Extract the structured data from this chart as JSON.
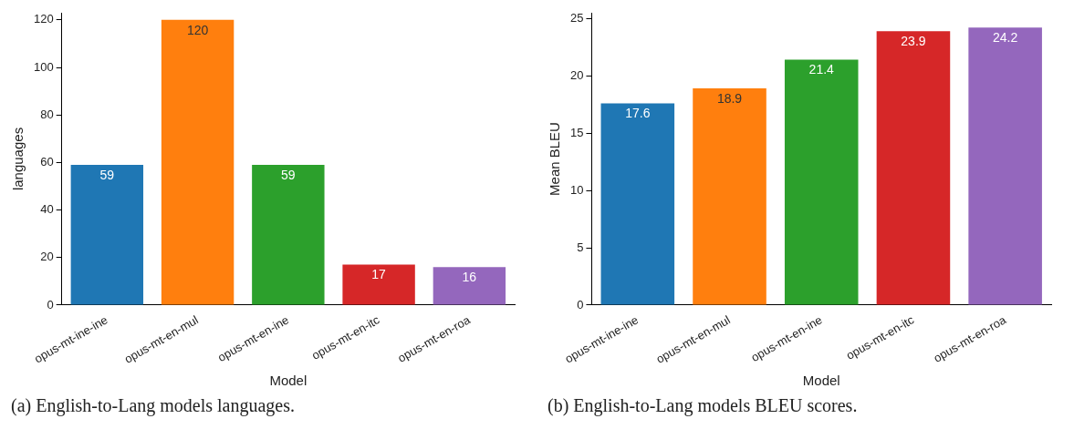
{
  "chart_data": [
    {
      "type": "bar",
      "xlabel": "Model",
      "ylabel": "languages",
      "categories": [
        "opus-mt-ine-ine",
        "opus-mt-en-mul",
        "opus-mt-en-ine",
        "opus-mt-en-itc",
        "opus-mt-en-roa"
      ],
      "values": [
        59,
        120,
        59,
        17,
        16
      ],
      "colors": [
        "#1f77b4",
        "#ff7f0e",
        "#2ca02c",
        "#d62728",
        "#9467bd"
      ],
      "ylim": [
        0,
        123
      ],
      "yticks": [
        0,
        20,
        40,
        60,
        80,
        100,
        120
      ],
      "grid": false,
      "legend": false,
      "data_labels": true,
      "annotations": [
        "(a) English-to-Lang models languages."
      ]
    },
    {
      "type": "bar",
      "xlabel": "Model",
      "ylabel": "Mean BLEU",
      "categories": [
        "opus-mt-ine-ine",
        "opus-mt-en-mul",
        "opus-mt-en-ine",
        "opus-mt-en-itc",
        "opus-mt-en-roa"
      ],
      "values": [
        17.6,
        18.9,
        21.4,
        23.9,
        24.2
      ],
      "colors": [
        "#1f77b4",
        "#ff7f0e",
        "#2ca02c",
        "#d62728",
        "#9467bd"
      ],
      "ylim": [
        0,
        25.5
      ],
      "yticks": [
        0,
        5,
        10,
        15,
        20,
        25
      ],
      "grid": false,
      "legend": false,
      "data_labels": true,
      "annotations": [
        "(b) English-to-Lang models BLEU scores."
      ]
    }
  ]
}
